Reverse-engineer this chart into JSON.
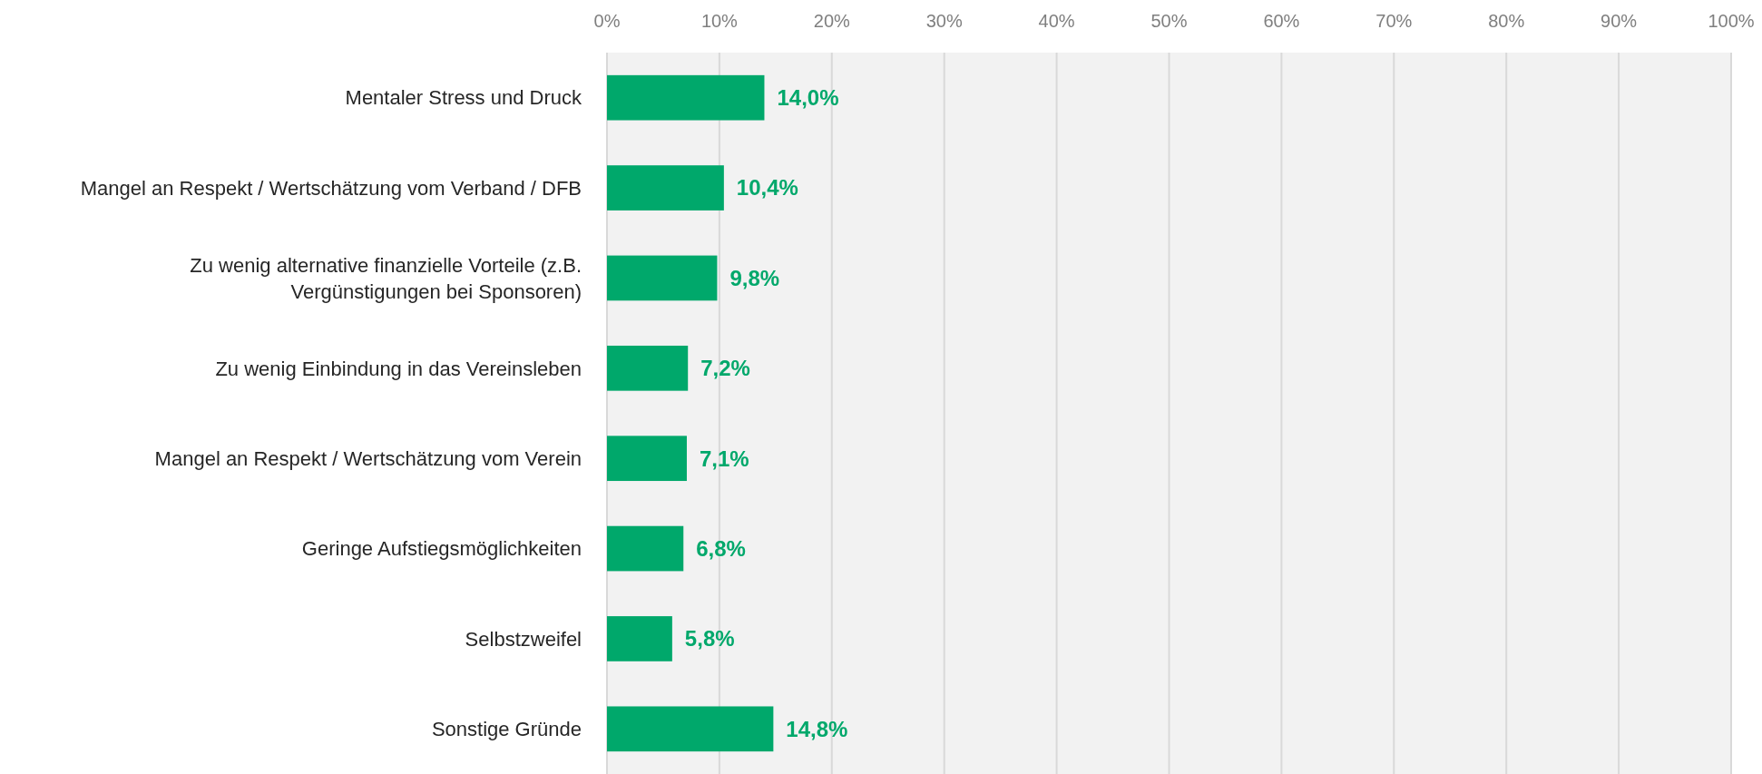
{
  "chart_data": {
    "type": "bar",
    "orientation": "horizontal",
    "categories": [
      "Mentaler Stress und Druck",
      "Mangel an Respekt / Wertschätzung vom Verband / DFB",
      "Zu wenig alternative finanzielle Vorteile (z.B. Vergünstigungen bei Sponsoren)",
      "Zu wenig Einbindung in das Vereinsleben",
      "Mangel an Respekt / Wertschätzung vom Verein",
      "Geringe Aufstiegsmöglichkeiten",
      "Selbstzweifel",
      "Sonstige Gründe"
    ],
    "values": [
      14.0,
      10.4,
      9.8,
      7.2,
      7.1,
      6.8,
      5.8,
      14.8
    ],
    "value_labels": [
      "14,0%",
      "10,4%",
      "9,8%",
      "7,2%",
      "7,1%",
      "6,8%",
      "5,8%",
      "14,8%"
    ],
    "color": "#00a86b",
    "xlim": [
      0,
      100
    ],
    "xticks": [
      {
        "value": 0,
        "label": "0%"
      },
      {
        "value": 10,
        "label": "10%"
      },
      {
        "value": 20,
        "label": "20%"
      },
      {
        "value": 30,
        "label": "30%"
      },
      {
        "value": 40,
        "label": "40%"
      },
      {
        "value": 50,
        "label": "50%"
      },
      {
        "value": 60,
        "label": "60%"
      },
      {
        "value": 70,
        "label": "70%"
      },
      {
        "value": 80,
        "label": "80%"
      },
      {
        "value": 90,
        "label": "90%"
      },
      {
        "value": 100,
        "label": "100%"
      }
    ],
    "grid": "x"
  }
}
